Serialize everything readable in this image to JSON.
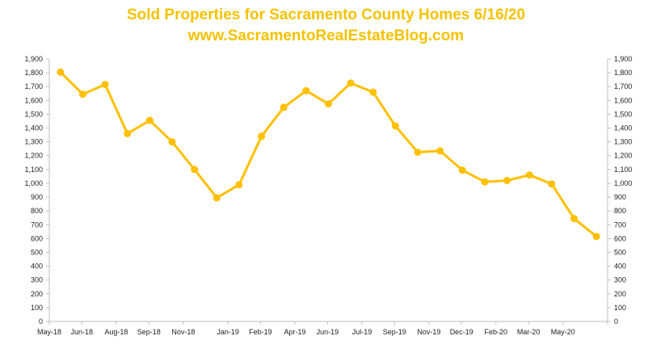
{
  "chart_data": {
    "type": "line",
    "title": "Sold Properties for Sacramento County Homes 6/16/20",
    "subtitle": "www.SacramentoRealEstateBlog.com",
    "x_tick_labels": [
      "May-18",
      "Jun-18",
      "Aug-18",
      "Sep-18",
      "Nov-18",
      "Jan-19",
      "Feb-19",
      "Apr-19",
      "Jun-19",
      "Jul-19",
      "Sep-19",
      "Nov-19",
      "Dec-19",
      "Feb-20",
      "Mar-20",
      "May-20"
    ],
    "x": [
      "2018-05",
      "2018-06",
      "2018-07",
      "2018-08",
      "2018-09",
      "2018-10",
      "2018-11",
      "2018-12",
      "2019-01",
      "2019-02",
      "2019-03",
      "2019-04",
      "2019-05",
      "2019-06",
      "2019-07",
      "2019-08",
      "2019-09",
      "2019-10",
      "2019-11",
      "2019-12",
      "2020-01",
      "2020-02",
      "2020-03",
      "2020-04",
      "2020-05"
    ],
    "series": [
      {
        "values": [
          1805,
          1645,
          1715,
          1360,
          1455,
          1300,
          1100,
          895,
          990,
          1340,
          1550,
          1670,
          1575,
          1725,
          1660,
          1415,
          1225,
          1235,
          1095,
          1010,
          1020,
          1060,
          995,
          745,
          615
        ]
      }
    ],
    "y_tick_labels": [
      "0",
      "100",
      "200",
      "300",
      "400",
      "500",
      "600",
      "700",
      "800",
      "900",
      "1,000",
      "1,100",
      "1,200",
      "1,300",
      "1,400",
      "1,500",
      "1,600",
      "1,700",
      "1,800",
      "1,900"
    ],
    "ylim": [
      0,
      1900
    ],
    "secondary_y_axis": true,
    "grid": false,
    "legend": "none",
    "colors": {
      "line": "#FFC000",
      "title": "#F5C200",
      "axis": "#BFBFBF",
      "text": "#222222"
    }
  }
}
